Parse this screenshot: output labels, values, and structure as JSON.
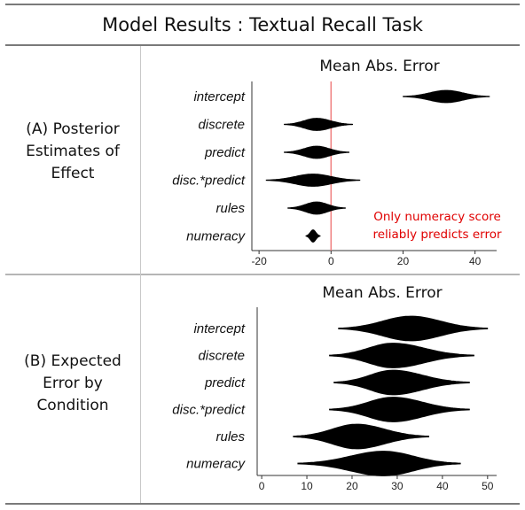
{
  "header": {
    "title": "Model Results : Textual Recall Task"
  },
  "rows": [
    {
      "label_lines": [
        "(A) Posterior",
        "Estimates of",
        "Effect"
      ]
    },
    {
      "label_lines": [
        "(B) Expected",
        "Error by",
        "Condition"
      ]
    }
  ],
  "colors": {
    "violin": "#000000",
    "zero_line": "#f08080",
    "annotation": "#e00000",
    "axis": "#333333"
  },
  "chart_data": [
    {
      "type": "violin",
      "title": "Mean Abs. Error",
      "categories": [
        "intercept",
        "discrete",
        "predict",
        "disc.*predict",
        "rules",
        "numeracy"
      ],
      "xlim": [
        -22,
        46
      ],
      "xticks": [
        -20,
        0,
        20,
        40
      ],
      "reference_line": 0,
      "distributions": [
        {
          "name": "intercept",
          "min": 20,
          "median": 32,
          "max": 44,
          "q1": 29,
          "q3": 36
        },
        {
          "name": "discrete",
          "min": -13,
          "median": -4,
          "max": 6,
          "q1": -7,
          "q3": -1
        },
        {
          "name": "predict",
          "min": -13,
          "median": -4,
          "max": 5,
          "q1": -7,
          "q3": -1
        },
        {
          "name": "disc.*predict",
          "min": -18,
          "median": -5,
          "max": 8,
          "q1": -9,
          "q3": -1
        },
        {
          "name": "rules",
          "min": -12,
          "median": -4,
          "max": 4,
          "q1": -7,
          "q3": -1
        },
        {
          "name": "numeracy",
          "min": -7,
          "median": -5,
          "max": -3,
          "q1": -6,
          "q3": -4
        }
      ],
      "annotation": [
        "Only numeracy score",
        "reliably predicts error"
      ]
    },
    {
      "type": "violin",
      "title": "Mean Abs. Error",
      "categories": [
        "intercept",
        "discrete",
        "predict",
        "disc.*predict",
        "rules",
        "numeracy"
      ],
      "xlim": [
        -1,
        52
      ],
      "xticks": [
        0,
        10,
        20,
        30,
        40,
        50
      ],
      "distributions": [
        {
          "name": "intercept",
          "min": 17,
          "median": 33,
          "max": 50,
          "q1": 29,
          "q3": 37
        },
        {
          "name": "discrete",
          "min": 15,
          "median": 29,
          "max": 47,
          "q1": 25,
          "q3": 33
        },
        {
          "name": "predict",
          "min": 16,
          "median": 29,
          "max": 46,
          "q1": 26,
          "q3": 32
        },
        {
          "name": "disc.*predict",
          "min": 15,
          "median": 29,
          "max": 46,
          "q1": 25,
          "q3": 33
        },
        {
          "name": "rules",
          "min": 7,
          "median": 21,
          "max": 37,
          "q1": 17,
          "q3": 25
        },
        {
          "name": "numeracy",
          "min": 8,
          "median": 27,
          "max": 44,
          "q1": 22,
          "q3": 31
        }
      ]
    }
  ]
}
